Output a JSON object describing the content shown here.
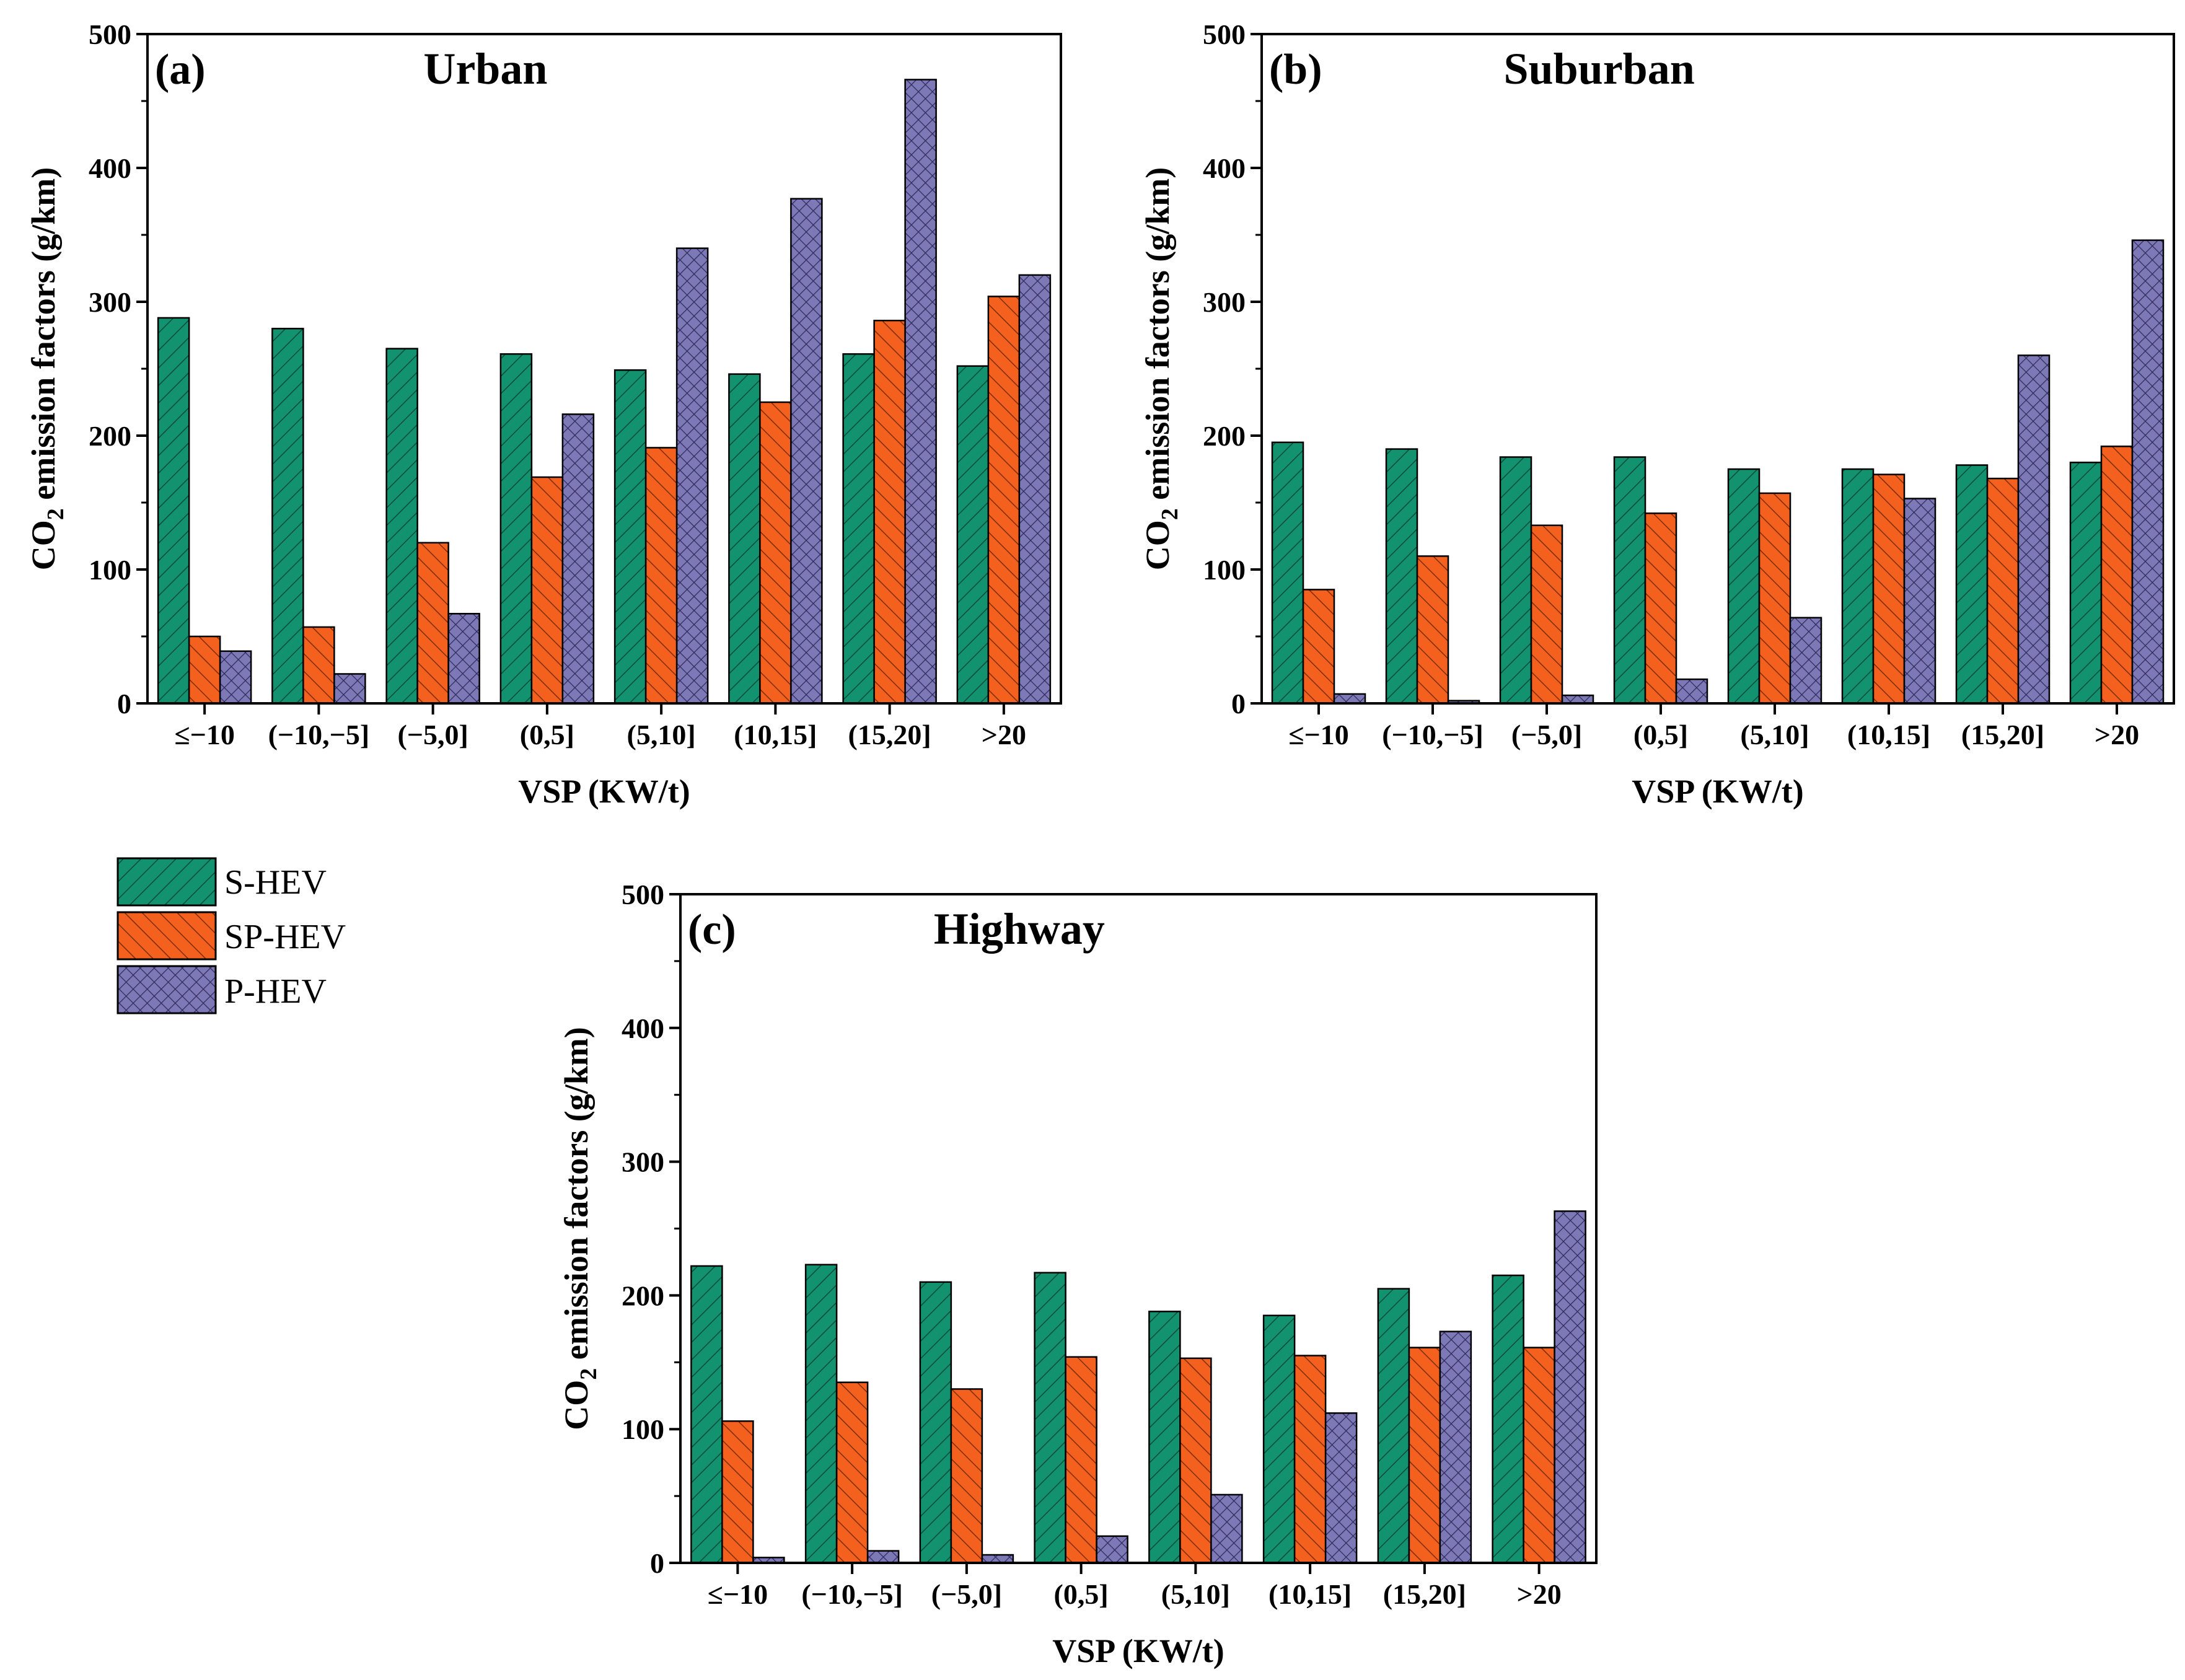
{
  "chart_data": [
    {
      "type": "bar",
      "panel_label": "(a)",
      "title": "Urban",
      "xlabel": "VSP (KW/t)",
      "ylabel_main": "CO",
      "ylabel_sub": "2",
      "ylabel_rest": " emission factors (g/km)",
      "ylim": [
        0,
        500
      ],
      "yticks": [
        "0",
        "100",
        "200",
        "300",
        "400",
        "500"
      ],
      "categories": [
        "≤−10",
        "(−10,−5]",
        "(−5,0]",
        "(0,5]",
        "(5,10]",
        "(10,15]",
        "(15,20]",
        ">20"
      ],
      "series": [
        {
          "name": "S-HEV",
          "values": [
            288,
            280,
            265,
            261,
            249,
            246,
            261,
            252
          ]
        },
        {
          "name": "SP-HEV",
          "values": [
            50,
            57,
            120,
            169,
            191,
            225,
            286,
            304
          ]
        },
        {
          "name": "P-HEV",
          "values": [
            39,
            22,
            67,
            216,
            340,
            377,
            466,
            320
          ]
        }
      ]
    },
    {
      "type": "bar",
      "panel_label": "(b)",
      "title": "Suburban",
      "xlabel": "VSP (KW/t)",
      "ylabel_main": "CO",
      "ylabel_sub": "2",
      "ylabel_rest": " emission factors (g/km)",
      "ylim": [
        0,
        500
      ],
      "yticks": [
        "0",
        "100",
        "200",
        "300",
        "400",
        "500"
      ],
      "categories": [
        "≤−10",
        "(−10,−5]",
        "(−5,0]",
        "(0,5]",
        "(5,10]",
        "(10,15]",
        "(15,20]",
        ">20"
      ],
      "series": [
        {
          "name": "S-HEV",
          "values": [
            195,
            190,
            184,
            184,
            175,
            175,
            178,
            180
          ]
        },
        {
          "name": "SP-HEV",
          "values": [
            85,
            110,
            133,
            142,
            157,
            171,
            168,
            192
          ]
        },
        {
          "name": "P-HEV",
          "values": [
            7,
            2,
            6,
            18,
            64,
            153,
            260,
            346
          ]
        }
      ]
    },
    {
      "type": "bar",
      "panel_label": "(c)",
      "title": "Highway",
      "xlabel": "VSP (KW/t)",
      "ylabel_main": "CO",
      "ylabel_sub": "2",
      "ylabel_rest": " emission factors (g/km)",
      "ylim": [
        0,
        500
      ],
      "yticks": [
        "0",
        "100",
        "200",
        "300",
        "400",
        "500"
      ],
      "categories": [
        "≤−10",
        "(−10,−5]",
        "(−5,0]",
        "(0,5]",
        "(5,10]",
        "(10,15]",
        "(15,20]",
        ">20"
      ],
      "series": [
        {
          "name": "S-HEV",
          "values": [
            222,
            223,
            210,
            217,
            188,
            185,
            205,
            215
          ]
        },
        {
          "name": "SP-HEV",
          "values": [
            106,
            135,
            130,
            154,
            153,
            155,
            161,
            161
          ]
        },
        {
          "name": "P-HEV",
          "values": [
            4,
            9,
            6,
            20,
            51,
            112,
            173,
            263
          ]
        }
      ]
    }
  ],
  "legend": {
    "items": [
      {
        "name": "S-HEV",
        "color": "#13926F",
        "pattern": "diag-up"
      },
      {
        "name": "SP-HEV",
        "color": "#F4611E",
        "pattern": "diag-down"
      },
      {
        "name": "P-HEV",
        "color": "#7D78B6",
        "pattern": "cross"
      }
    ]
  }
}
